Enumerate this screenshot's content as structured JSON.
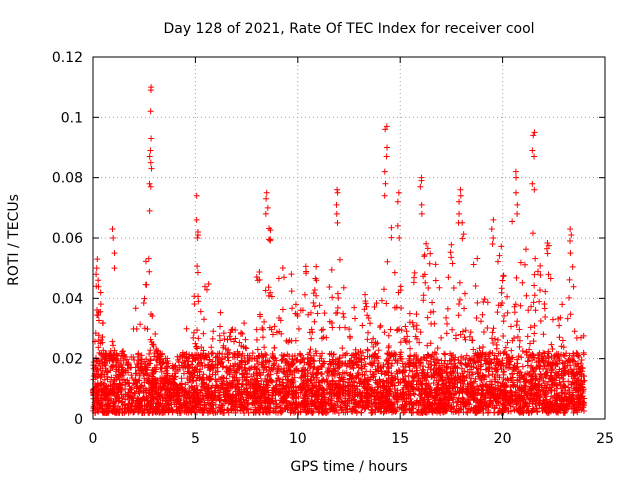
{
  "chart_data": {
    "type": "scatter",
    "title": "Day 128 of 2021, Rate Of TEC Index for receiver cool",
    "xlabel": "GPS time / hours",
    "ylabel": "ROTI / TECUs",
    "xlim": [
      0,
      25
    ],
    "ylim": [
      0,
      0.12
    ],
    "xticks": [
      0,
      5,
      10,
      15,
      20,
      25
    ],
    "xtick_labels": [
      "0",
      "5",
      "10",
      "15",
      "20",
      "25"
    ],
    "yticks": [
      0,
      0.02,
      0.04,
      0.06,
      0.08,
      0.1,
      0.12
    ],
    "ytick_labels": [
      "0",
      "0.02",
      "0.04",
      "0.06",
      "0.08",
      "0.1",
      "0.12"
    ],
    "grid": true,
    "marker": "+",
    "series": [
      {
        "name": "ROTI",
        "color": "#ff0000",
        "x_range": [
          0,
          24
        ],
        "baseline_range": [
          0.002,
          0.022
        ],
        "envelope": {
          "x": [
            0,
            0.3,
            0.8,
            1.5,
            2.2,
            2.7,
            3.2,
            4.0,
            4.8,
            5.3,
            6.0,
            7.0,
            8.0,
            8.6,
            9.5,
            10.3,
            11.0,
            11.9,
            12.8,
            13.8,
            14.3,
            15.0,
            15.8,
            16.4,
            17.2,
            17.9,
            18.6,
            19.2,
            19.9,
            20.6,
            21.2,
            21.6,
            22.2,
            22.8,
            23.3,
            24.0
          ],
          "y": [
            0.035,
            0.05,
            0.03,
            0.025,
            0.04,
            0.06,
            0.03,
            0.02,
            0.04,
            0.06,
            0.04,
            0.04,
            0.05,
            0.07,
            0.05,
            0.06,
            0.055,
            0.07,
            0.04,
            0.05,
            0.085,
            0.06,
            0.05,
            0.07,
            0.05,
            0.07,
            0.06,
            0.05,
            0.06,
            0.07,
            0.06,
            0.08,
            0.06,
            0.04,
            0.055,
            0.03
          ]
        },
        "spikes": [
          {
            "x": 2.8,
            "values": [
              0.11,
              0.109,
              0.102,
              0.093,
              0.089,
              0.087,
              0.085,
              0.083,
              0.078,
              0.077,
              0.069
            ]
          },
          {
            "x": 14.3,
            "values": [
              0.097,
              0.096,
              0.09,
              0.087,
              0.082,
              0.078,
              0.074
            ]
          },
          {
            "x": 21.5,
            "values": [
              0.095,
              0.094,
              0.089,
              0.087,
              0.078,
              0.076
            ]
          },
          {
            "x": 20.7,
            "values": [
              0.082,
              0.08,
              0.075,
              0.071,
              0.068
            ]
          },
          {
            "x": 16.0,
            "values": [
              0.08,
              0.079,
              0.077,
              0.071,
              0.068
            ]
          },
          {
            "x": 17.9,
            "values": [
              0.076,
              0.074,
              0.072,
              0.068,
              0.065
            ]
          },
          {
            "x": 11.9,
            "values": [
              0.076,
              0.075,
              0.071,
              0.068,
              0.065
            ]
          },
          {
            "x": 8.5,
            "values": [
              0.075,
              0.073,
              0.07,
              0.068
            ]
          },
          {
            "x": 5.1,
            "values": [
              0.074,
              0.066,
              0.062,
              0.061,
              0.06
            ]
          },
          {
            "x": 0.2,
            "values": [
              0.053,
              0.05,
              0.048,
              0.046,
              0.044
            ]
          },
          {
            "x": 1.0,
            "values": [
              0.063,
              0.06,
              0.055,
              0.05
            ]
          },
          {
            "x": 23.3,
            "values": [
              0.063,
              0.061,
              0.059,
              0.055
            ]
          },
          {
            "x": 14.9,
            "values": [
              0.075,
              0.072,
              0.064,
              0.06
            ]
          },
          {
            "x": 19.5,
            "values": [
              0.066,
              0.063,
              0.06,
              0.058
            ]
          }
        ]
      }
    ]
  }
}
